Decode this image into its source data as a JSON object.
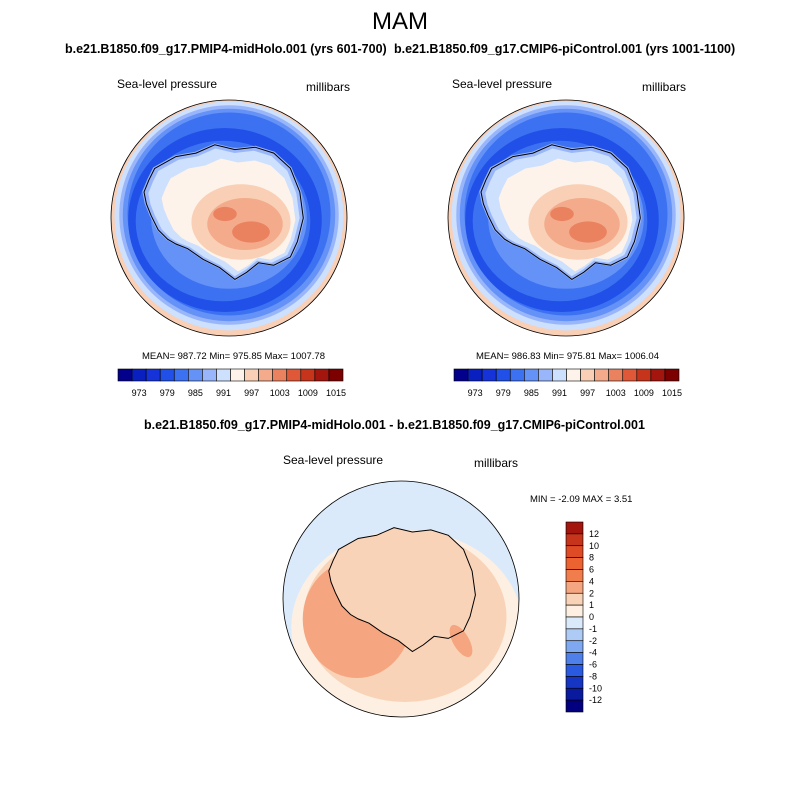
{
  "figure": {
    "season_title": "MAM"
  },
  "panels": [
    {
      "title": "b.e21.B1850.f09_g17.PMIP4-midHolo.001 (yrs 601-700)",
      "left_label": "Sea-level pressure",
      "right_label": "millibars",
      "stats": "MEAN= 987.72  Min= 975.85  Max= 1007.78"
    },
    {
      "title": "b.e21.B1850.f09_g17.CMIP6-piControl.001 (yrs 1001-1100)",
      "left_label": "Sea-level pressure",
      "right_label": "millibars",
      "stats": "MEAN= 986.83  Min= 975.81  Max= 1006.04"
    }
  ],
  "difference": {
    "title": "b.e21.B1850.f09_g17.PMIP4-midHolo.001 - b.e21.B1850.f09_g17.CMIP6-piControl.001",
    "left_label": "Sea-level pressure",
    "right_label": "millibars",
    "stats": "MIN =  -2.09 MAX =   3.51"
  },
  "chart_data": [
    {
      "type": "heatmap",
      "projection": "south-polar-stereographic",
      "variable": "Sea-level pressure",
      "units": "millibars",
      "mean": 987.72,
      "min": 975.85,
      "max": 1007.78,
      "colorbar": {
        "orientation": "horizontal",
        "levels": [
          970,
          973,
          976,
          979,
          982,
          985,
          988,
          991,
          994,
          997,
          1000,
          1003,
          1006,
          1009,
          1012,
          1015
        ],
        "tick_labels": [
          "973",
          "979",
          "985",
          "991",
          "997",
          "1003",
          "1009",
          "1015"
        ],
        "colors": [
          "#03008b",
          "#0a1fbf",
          "#1533d8",
          "#2050e8",
          "#3c71f2",
          "#6592f7",
          "#9ab6fa",
          "#cde0fd",
          "#fdf3ea",
          "#f9cfb5",
          "#f3ab8c",
          "#ea8260",
          "#df5838",
          "#c6341b",
          "#a3150d",
          "#7c0000"
        ]
      }
    },
    {
      "type": "heatmap",
      "projection": "south-polar-stereographic",
      "variable": "Sea-level pressure",
      "units": "millibars",
      "mean": 986.83,
      "min": 975.81,
      "max": 1006.04,
      "colorbar": {
        "orientation": "horizontal",
        "levels": [
          970,
          973,
          976,
          979,
          982,
          985,
          988,
          991,
          994,
          997,
          1000,
          1003,
          1006,
          1009,
          1012,
          1015
        ],
        "tick_labels": [
          "973",
          "979",
          "985",
          "991",
          "997",
          "1003",
          "1009",
          "1015"
        ],
        "colors": [
          "#03008b",
          "#0a1fbf",
          "#1533d8",
          "#2050e8",
          "#3c71f2",
          "#6592f7",
          "#9ab6fa",
          "#cde0fd",
          "#fdf3ea",
          "#f9cfb5",
          "#f3ab8c",
          "#ea8260",
          "#df5838",
          "#c6341b",
          "#a3150d",
          "#7c0000"
        ]
      }
    },
    {
      "type": "heatmap",
      "projection": "south-polar-stereographic",
      "variable": "Sea-level pressure difference",
      "units": "millibars",
      "min": -2.09,
      "max": 3.51,
      "colorbar": {
        "orientation": "vertical",
        "tick_labels": [
          "12",
          "10",
          "8",
          "6",
          "4",
          "2",
          "1",
          "0",
          "-1",
          "-2",
          "-4",
          "-6",
          "-8",
          "-10",
          "-12"
        ],
        "colors": [
          "#a3150d",
          "#c6341b",
          "#df4b24",
          "#ec6331",
          "#f17d4d",
          "#f5a57f",
          "#f9d3b8",
          "#fdf0e2",
          "#dbeafb",
          "#aecbf6",
          "#7ea8f0",
          "#4f80ea",
          "#2a5ae0",
          "#1535c2",
          "#0a1a9f",
          "#03007f"
        ]
      }
    }
  ]
}
